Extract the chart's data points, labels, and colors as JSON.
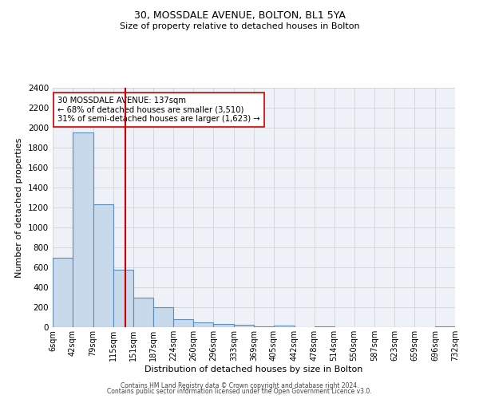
{
  "title": "30, MOSSDALE AVENUE, BOLTON, BL1 5YA",
  "subtitle": "Size of property relative to detached houses in Bolton",
  "xlabel": "Distribution of detached houses by size in Bolton",
  "ylabel": "Number of detached properties",
  "bin_edges": [
    6,
    42,
    79,
    115,
    151,
    187,
    224,
    260,
    296,
    333,
    369,
    405,
    442,
    478,
    514,
    550,
    587,
    623,
    659,
    696,
    732
  ],
  "bar_heights": [
    700,
    1950,
    1230,
    580,
    300,
    200,
    80,
    45,
    30,
    25,
    5,
    15,
    0,
    5,
    0,
    0,
    0,
    0,
    0,
    5
  ],
  "bar_color": "#c9d9ec",
  "bar_edge_color": "#5b8db8",
  "property_line_x": 137,
  "property_line_color": "#cc0000",
  "annotation_text": "30 MOSSDALE AVENUE: 137sqm\n← 68% of detached houses are smaller (3,510)\n31% of semi-detached houses are larger (1,623) →",
  "annotation_box_color": "white",
  "annotation_box_edge_color": "#cc0000",
  "ylim": [
    0,
    2400
  ],
  "yticks": [
    0,
    200,
    400,
    600,
    800,
    1000,
    1200,
    1400,
    1600,
    1800,
    2000,
    2200,
    2400
  ],
  "grid_color": "#cccccc",
  "background_color": "#eef2f8",
  "footer_line1": "Contains HM Land Registry data © Crown copyright and database right 2024.",
  "footer_line2": "Contains public sector information licensed under the Open Government Licence v3.0."
}
